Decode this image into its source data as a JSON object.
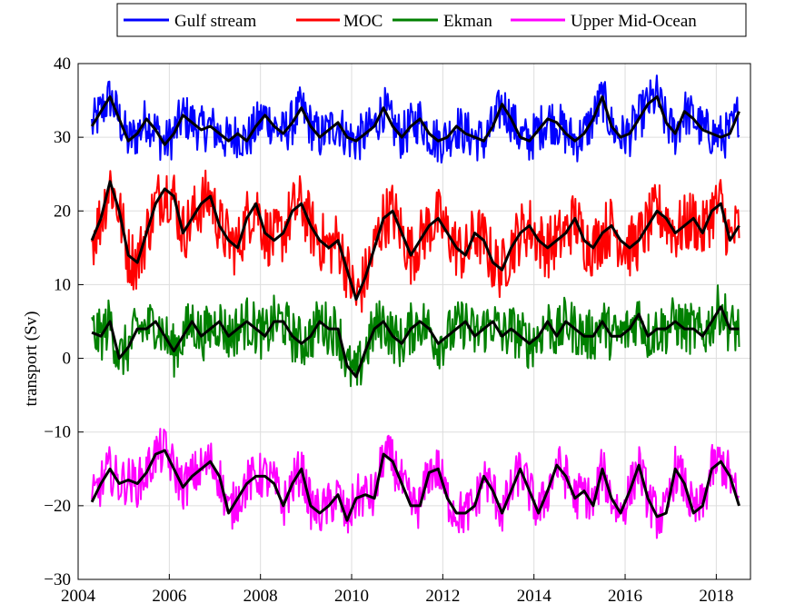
{
  "chart_data": {
    "type": "line",
    "title": "",
    "xlabel": "",
    "ylabel": "transport (Sv)",
    "xlim": [
      2004,
      2018.75
    ],
    "ylim": [
      -30,
      40
    ],
    "x_ticks": [
      2004,
      2006,
      2008,
      2010,
      2012,
      2014,
      2016,
      2018
    ],
    "y_ticks": [
      -30,
      -20,
      -10,
      0,
      10,
      20,
      30,
      40
    ],
    "x_tick_labels": [
      "2004",
      "2006",
      "2008",
      "2010",
      "2012",
      "2014",
      "2016",
      "2018"
    ],
    "y_tick_labels": [
      "−30",
      "−20",
      "−10",
      "0",
      "10",
      "20",
      "30",
      "40"
    ],
    "grid": true,
    "legend_position": "top-center",
    "series": [
      {
        "name": "Gulf stream",
        "color": "#0000ff",
        "smoothed_color": "#000000",
        "x": [
          2004.3,
          2004.5,
          2004.7,
          2004.9,
          2005.1,
          2005.3,
          2005.5,
          2005.7,
          2005.9,
          2006.1,
          2006.3,
          2006.5,
          2006.7,
          2006.9,
          2007.1,
          2007.3,
          2007.5,
          2007.7,
          2007.9,
          2008.1,
          2008.3,
          2008.5,
          2008.7,
          2008.9,
          2009.1,
          2009.3,
          2009.5,
          2009.7,
          2009.9,
          2010.1,
          2010.3,
          2010.5,
          2010.7,
          2010.9,
          2011.1,
          2011.3,
          2011.5,
          2011.7,
          2011.9,
          2012.1,
          2012.3,
          2012.5,
          2012.7,
          2012.9,
          2013.1,
          2013.3,
          2013.5,
          2013.7,
          2013.9,
          2014.1,
          2014.3,
          2014.5,
          2014.7,
          2014.9,
          2015.1,
          2015.3,
          2015.5,
          2015.7,
          2015.9,
          2016.1,
          2016.3,
          2016.5,
          2016.7,
          2016.9,
          2017.1,
          2017.3,
          2017.5,
          2017.7,
          2017.9,
          2018.1,
          2018.3,
          2018.5
        ],
        "values": [
          31.5,
          33.5,
          35.5,
          32.5,
          29.5,
          30.5,
          32.5,
          31,
          29,
          30.5,
          33,
          32,
          31,
          31.5,
          30.5,
          29.5,
          30.5,
          29.5,
          31.5,
          33,
          31.5,
          30.5,
          32,
          34,
          31.5,
          30,
          31,
          32,
          30,
          29.5,
          30.5,
          31.5,
          34,
          31.5,
          30,
          31.5,
          32.5,
          30.5,
          29.5,
          30,
          31.5,
          30.5,
          30,
          29.5,
          31.5,
          34.5,
          32.5,
          30,
          29.5,
          31,
          32.5,
          32,
          30.5,
          29.5,
          30.5,
          32.5,
          35.5,
          31.5,
          30,
          30.5,
          32.5,
          34.5,
          35.5,
          32,
          30.5,
          33.5,
          32.5,
          31,
          30.5,
          30,
          30.5,
          33.5
        ],
        "smoothed": [
          31.5,
          33.5,
          35.5,
          32.5,
          29.5,
          30.5,
          32.5,
          31,
          29,
          30.5,
          33,
          32,
          31,
          31.5,
          30.5,
          29.5,
          30.5,
          29.5,
          31.5,
          33,
          31.5,
          30.5,
          32,
          34,
          31.5,
          30,
          31,
          32,
          30,
          29.5,
          30.5,
          31.5,
          34,
          31.5,
          30,
          31.5,
          32.5,
          30.5,
          29.5,
          30,
          31.5,
          30.5,
          30,
          29.5,
          31.5,
          34.5,
          32.5,
          30,
          29.5,
          31,
          32.5,
          32,
          30.5,
          29.5,
          30.5,
          32.5,
          35.5,
          31.5,
          30,
          30.5,
          32.5,
          34.5,
          35.5,
          32,
          30.5,
          33.5,
          32.5,
          31,
          30.5,
          30,
          30.5,
          33.5
        ]
      },
      {
        "name": "MOC",
        "color": "#ff0000",
        "smoothed_color": "#000000",
        "x": [
          2004.3,
          2004.5,
          2004.7,
          2004.9,
          2005.1,
          2005.3,
          2005.5,
          2005.7,
          2005.9,
          2006.1,
          2006.3,
          2006.5,
          2006.7,
          2006.9,
          2007.1,
          2007.3,
          2007.5,
          2007.7,
          2007.9,
          2008.1,
          2008.3,
          2008.5,
          2008.7,
          2008.9,
          2009.1,
          2009.3,
          2009.5,
          2009.7,
          2009.9,
          2010.1,
          2010.3,
          2010.5,
          2010.7,
          2010.9,
          2011.1,
          2011.3,
          2011.5,
          2011.7,
          2011.9,
          2012.1,
          2012.3,
          2012.5,
          2012.7,
          2012.9,
          2013.1,
          2013.3,
          2013.5,
          2013.7,
          2013.9,
          2014.1,
          2014.3,
          2014.5,
          2014.7,
          2014.9,
          2015.1,
          2015.3,
          2015.5,
          2015.7,
          2015.9,
          2016.1,
          2016.3,
          2016.5,
          2016.7,
          2016.9,
          2017.1,
          2017.3,
          2017.5,
          2017.7,
          2017.9,
          2018.1,
          2018.3,
          2018.5
        ],
        "values": [
          16,
          19,
          24,
          20,
          14,
          13,
          17,
          21,
          23,
          22,
          17,
          19,
          21,
          22,
          18,
          16,
          15,
          19,
          21,
          17,
          16,
          17,
          20,
          21,
          18,
          16,
          15,
          16,
          12,
          8,
          11,
          15,
          19,
          20,
          17,
          14,
          16,
          18,
          19,
          17,
          15,
          14,
          17,
          16,
          13,
          12,
          15,
          17,
          18,
          16,
          15,
          16,
          17,
          19,
          16,
          15,
          17,
          18,
          16,
          15,
          16,
          18,
          20,
          19,
          17,
          18,
          19,
          17,
          20,
          21,
          16,
          18
        ],
        "smoothed": [
          16,
          19,
          24,
          20,
          14,
          13,
          17,
          21,
          23,
          22,
          17,
          19,
          21,
          22,
          18,
          16,
          15,
          19,
          21,
          17,
          16,
          17,
          20,
          21,
          18,
          16,
          15,
          16,
          12,
          8,
          11,
          15,
          19,
          20,
          17,
          14,
          16,
          18,
          19,
          17,
          15,
          14,
          17,
          16,
          13,
          12,
          15,
          17,
          18,
          16,
          15,
          16,
          17,
          19,
          16,
          15,
          17,
          18,
          16,
          15,
          16,
          18,
          20,
          19,
          17,
          18,
          19,
          17,
          20,
          21,
          16,
          18
        ]
      },
      {
        "name": "Ekman",
        "color": "#008000",
        "smoothed_color": "#000000",
        "x": [
          2004.3,
          2004.5,
          2004.7,
          2004.9,
          2005.1,
          2005.3,
          2005.5,
          2005.7,
          2005.9,
          2006.1,
          2006.3,
          2006.5,
          2006.7,
          2006.9,
          2007.1,
          2007.3,
          2007.5,
          2007.7,
          2007.9,
          2008.1,
          2008.3,
          2008.5,
          2008.7,
          2008.9,
          2009.1,
          2009.3,
          2009.5,
          2009.7,
          2009.9,
          2010.1,
          2010.3,
          2010.5,
          2010.7,
          2010.9,
          2011.1,
          2011.3,
          2011.5,
          2011.7,
          2011.9,
          2012.1,
          2012.3,
          2012.5,
          2012.7,
          2012.9,
          2013.1,
          2013.3,
          2013.5,
          2013.7,
          2013.9,
          2014.1,
          2014.3,
          2014.5,
          2014.7,
          2014.9,
          2015.1,
          2015.3,
          2015.5,
          2015.7,
          2015.9,
          2016.1,
          2016.3,
          2016.5,
          2016.7,
          2016.9,
          2017.1,
          2017.3,
          2017.5,
          2017.7,
          2017.9,
          2018.1,
          2018.3,
          2018.5
        ],
        "values": [
          3.5,
          3,
          5,
          0,
          1.5,
          4,
          4,
          5,
          3,
          1,
          3,
          5,
          3,
          4,
          5,
          3,
          4,
          5,
          4,
          3,
          5,
          5,
          3,
          2,
          3,
          5,
          4,
          4,
          -1,
          -2.5,
          1,
          4,
          5,
          3,
          2,
          4,
          5,
          4,
          2,
          3,
          4,
          5,
          3,
          4,
          5,
          3,
          4,
          3,
          2,
          3,
          5,
          3,
          5,
          4,
          3,
          3,
          5,
          3,
          3,
          4,
          6,
          3,
          4,
          4,
          5,
          4,
          4,
          3,
          5,
          7,
          4,
          4
        ],
        "smoothed": [
          3.5,
          3,
          5,
          0,
          1.5,
          4,
          4,
          5,
          3,
          1,
          3,
          5,
          3,
          4,
          5,
          3,
          4,
          5,
          4,
          3,
          5,
          5,
          3,
          2,
          3,
          5,
          4,
          4,
          -1,
          -2.5,
          1,
          4,
          5,
          3,
          2,
          4,
          5,
          4,
          2,
          3,
          4,
          5,
          3,
          4,
          5,
          3,
          4,
          3,
          2,
          3,
          5,
          3,
          5,
          4,
          3,
          3,
          5,
          3,
          3,
          4,
          6,
          3,
          4,
          4,
          5,
          4,
          4,
          3,
          5,
          7,
          4,
          4
        ]
      },
      {
        "name": "Upper Mid-Ocean",
        "color": "#ff00ff",
        "smoothed_color": "#000000",
        "x": [
          2004.3,
          2004.5,
          2004.7,
          2004.9,
          2005.1,
          2005.3,
          2005.5,
          2005.7,
          2005.9,
          2006.1,
          2006.3,
          2006.5,
          2006.7,
          2006.9,
          2007.1,
          2007.3,
          2007.5,
          2007.7,
          2007.9,
          2008.1,
          2008.3,
          2008.5,
          2008.7,
          2008.9,
          2009.1,
          2009.3,
          2009.5,
          2009.7,
          2009.9,
          2010.1,
          2010.3,
          2010.5,
          2010.7,
          2010.9,
          2011.1,
          2011.3,
          2011.5,
          2011.7,
          2011.9,
          2012.1,
          2012.3,
          2012.5,
          2012.7,
          2012.9,
          2013.1,
          2013.3,
          2013.5,
          2013.7,
          2013.9,
          2014.1,
          2014.3,
          2014.5,
          2014.7,
          2014.9,
          2015.1,
          2015.3,
          2015.5,
          2015.7,
          2015.9,
          2016.1,
          2016.3,
          2016.5,
          2016.7,
          2016.9,
          2017.1,
          2017.3,
          2017.5,
          2017.7,
          2017.9,
          2018.1,
          2018.3,
          2018.5
        ],
        "values": [
          -19.5,
          -17,
          -15,
          -17,
          -16.5,
          -17,
          -15.5,
          -13,
          -12.5,
          -15,
          -17.5,
          -16,
          -15,
          -14,
          -16,
          -21,
          -19,
          -17,
          -16,
          -16,
          -17,
          -20,
          -17,
          -15,
          -20,
          -21,
          -20,
          -18.5,
          -22,
          -19,
          -18.5,
          -19,
          -13,
          -14,
          -17,
          -20,
          -20,
          -15.5,
          -15,
          -19,
          -21,
          -21,
          -20,
          -16,
          -18,
          -21,
          -18,
          -15,
          -18,
          -21,
          -18,
          -14.5,
          -16,
          -19,
          -18,
          -20,
          -15,
          -19,
          -21,
          -18,
          -14.5,
          -19,
          -21.5,
          -21,
          -15,
          -17,
          -21,
          -20,
          -15,
          -14,
          -16,
          -20
        ],
        "smoothed": [
          -19.5,
          -17,
          -15,
          -17,
          -16.5,
          -17,
          -15.5,
          -13,
          -12.5,
          -15,
          -17.5,
          -16,
          -15,
          -14,
          -16,
          -21,
          -19,
          -17,
          -16,
          -16,
          -17,
          -20,
          -17,
          -15,
          -20,
          -21,
          -20,
          -18.5,
          -22,
          -19,
          -18.5,
          -19,
          -13,
          -14,
          -17,
          -20,
          -20,
          -15.5,
          -15,
          -19,
          -21,
          -21,
          -20,
          -16,
          -18,
          -21,
          -18,
          -15,
          -18,
          -21,
          -18,
          -14.5,
          -16,
          -19,
          -18,
          -20,
          -15,
          -19,
          -21,
          -18,
          -14.5,
          -19,
          -21.5,
          -21,
          -15,
          -17,
          -21,
          -20,
          -15,
          -14,
          -16,
          -20
        ]
      }
    ]
  }
}
